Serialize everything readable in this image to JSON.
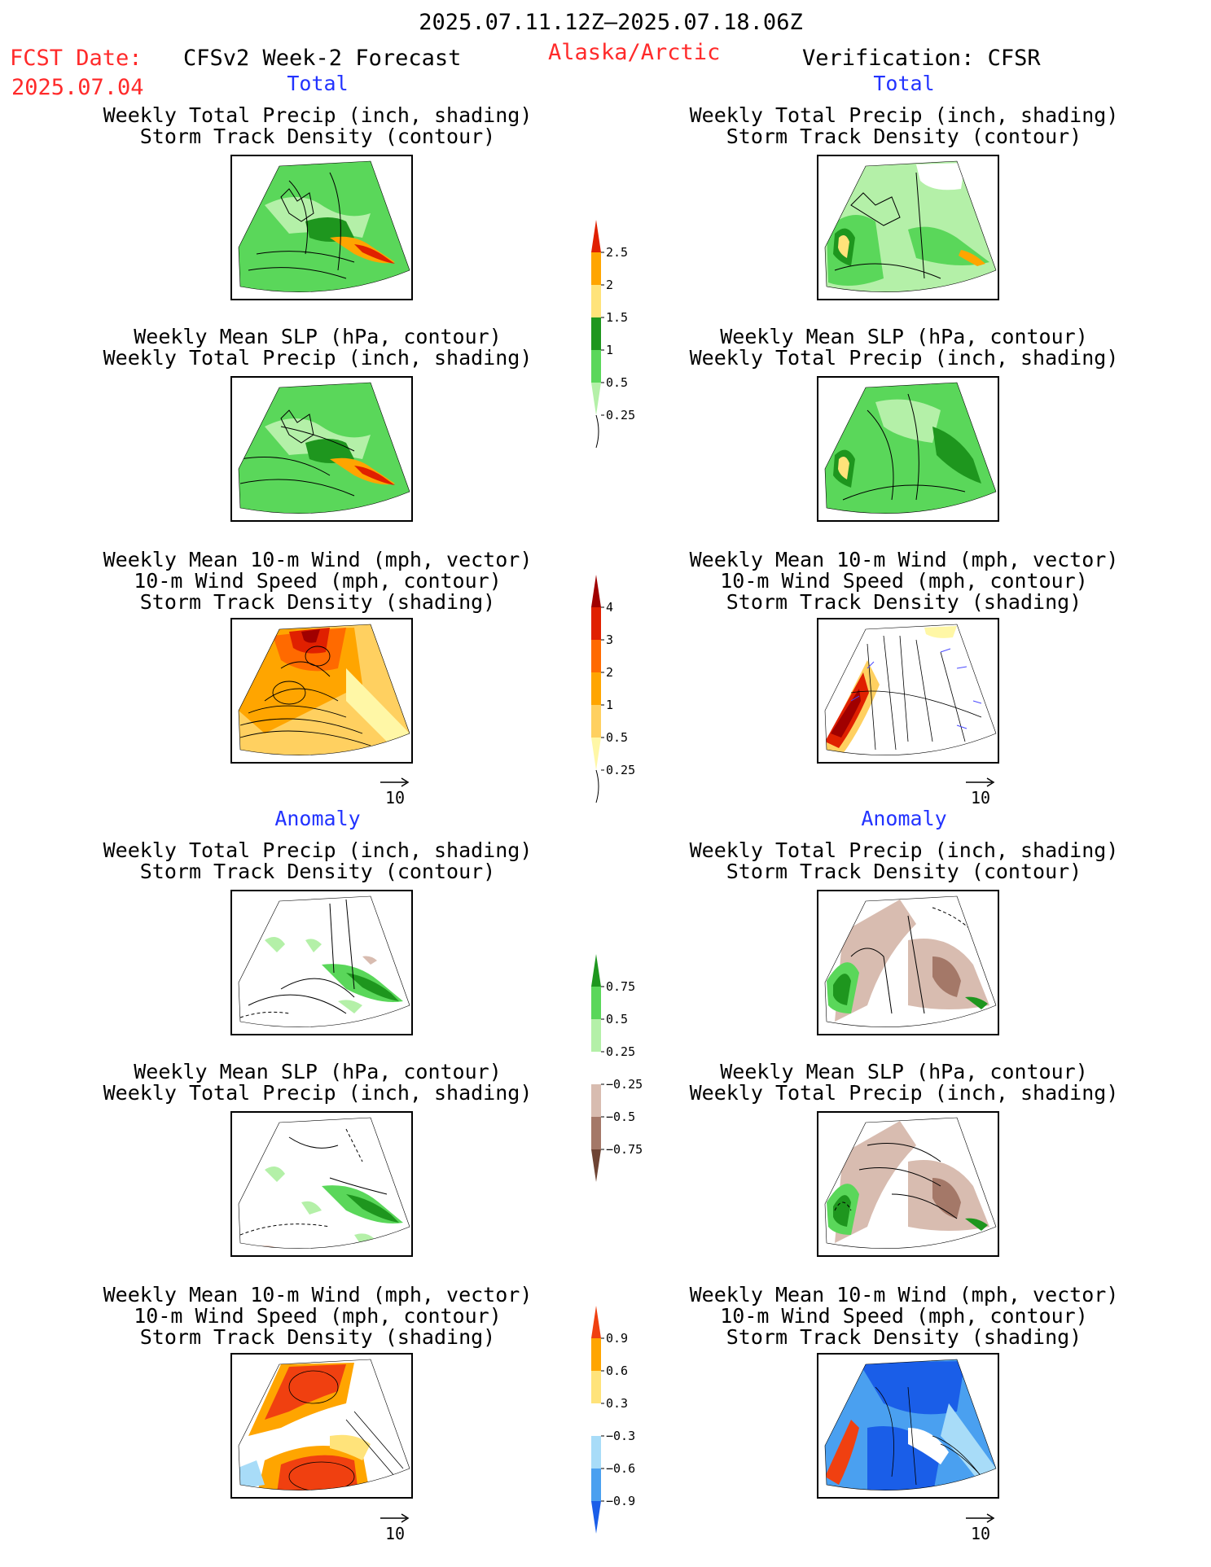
{
  "header": {
    "date_range": "2025.07.11.12Z–2025.07.18.06Z",
    "fcst_date_label": "FCST Date:",
    "fcst_date_value": "2025.07.04",
    "forecast_model": "CFSv2 Week-2 Forecast",
    "region": "Alaska/Arctic",
    "verification": "Verification: CFSR"
  },
  "sections": {
    "total_label": "Total",
    "anomaly_label": "Anomaly"
  },
  "panel_titles": {
    "precip_track": [
      "Weekly Total Precip (inch, shading)",
      "Storm Track Density (contour)"
    ],
    "slp_precip": [
      "Weekly Mean SLP (hPa, contour)",
      "Weekly Total Precip (inch, shading)"
    ],
    "wind_track": [
      "Weekly Mean 10-m Wind (mph, vector)",
      "10-m Wind Speed (mph, contour)",
      "Storm Track Density (shading)"
    ]
  },
  "vector_reference": "10",
  "colors": {
    "title_red": "#ff2a2a",
    "section_blue": "#2233ff",
    "precip_light": "#b4f0a8",
    "precip_mid": "#5ad75a",
    "precip_dark": "#1e961e",
    "precip_yellow": "#ffe37a",
    "precip_orange": "#ffa500",
    "precip_red": "#e02000",
    "dry_brown": "#d2b4a8"
  },
  "chart_data": [
    {
      "type": "heatmap",
      "name": "precip_total_colorbar",
      "levels": [
        "0.25",
        "0.5",
        "1",
        "1.5",
        "2",
        "2.5"
      ],
      "colors": [
        "#b4f0a8",
        "#5ad75a",
        "#1e961e",
        "#ffe37a",
        "#ffa500",
        "#e02000"
      ]
    },
    {
      "type": "heatmap",
      "name": "storm_track_total_colorbar",
      "levels": [
        "0.25",
        "0.5",
        "1",
        "2",
        "3",
        "4"
      ],
      "colors": [
        "#fff7a6",
        "#ffd060",
        "#ffa500",
        "#ff6a00",
        "#e02000",
        "#a00000"
      ]
    },
    {
      "type": "heatmap",
      "name": "precip_anomaly_colorbar",
      "levels": [
        "−0.75",
        "−0.5",
        "−0.25",
        "0.25",
        "0.5",
        "0.75"
      ],
      "colors": [
        "#6e4434",
        "#a47868",
        "#d8bcb0",
        "#ffffff",
        "#b4f0a8",
        "#5ad75a",
        "#1e961e"
      ]
    },
    {
      "type": "heatmap",
      "name": "storm_track_anomaly_colorbar",
      "levels": [
        "−0.9",
        "−0.6",
        "−0.3",
        "0.3",
        "0.6",
        "0.9"
      ],
      "colors": [
        "#1a5ee8",
        "#4aa0f0",
        "#a8dcf8",
        "#ffffff",
        "#ffe37a",
        "#ffa500",
        "#f04010"
      ]
    }
  ]
}
